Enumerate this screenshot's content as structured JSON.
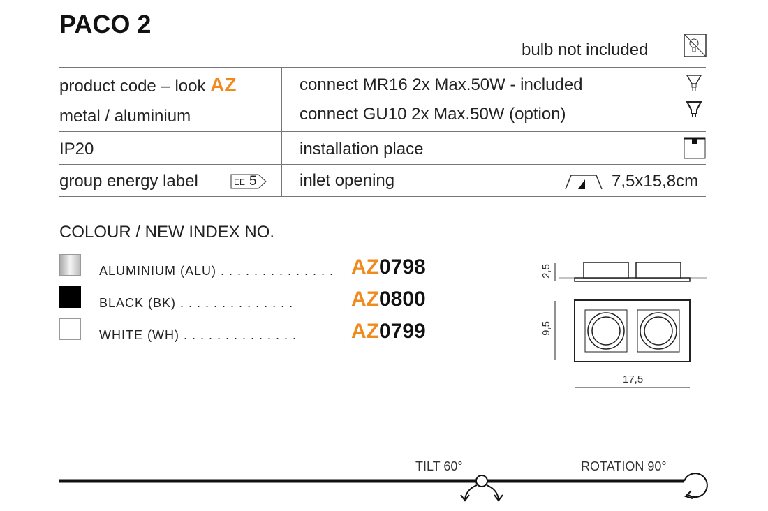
{
  "title": "PACO 2",
  "bulb_note": "bulb not included",
  "specs": {
    "left": [
      {
        "label": "product code – look",
        "accent": "AZ"
      },
      {
        "label": "metal / aluminium"
      },
      {
        "label": "IP20"
      },
      {
        "label": "group energy label",
        "badge_prefix": "EE",
        "badge_value": "5"
      }
    ],
    "right": [
      {
        "label": "connect MR16 2x Max.50W - included",
        "icon": "mr16-bulb-icon"
      },
      {
        "label": "connect GU10 2x Max.50W (option)",
        "icon": "gu10-bulb-icon"
      },
      {
        "label": "installation place",
        "icon": "ceiling-installation-icon"
      },
      {
        "label": "inlet opening",
        "value": "7,5x15,8cm",
        "icon": "inlet-opening-icon"
      }
    ]
  },
  "colours": {
    "heading": "COLOUR / NEW INDEX NO.",
    "items": [
      {
        "name": "ALUMINIUM (ALU)",
        "prefix": "AZ",
        "number": "0798",
        "swatch": "#d0d0d0"
      },
      {
        "name": "BLACK (BK)",
        "prefix": "AZ",
        "number": "0800",
        "swatch": "#000000"
      },
      {
        "name": "WHITE (WH)",
        "prefix": "AZ",
        "number": "0799",
        "swatch": "#ffffff"
      }
    ],
    "leader": ". . . . . . . . . . . . . ."
  },
  "dimensions": {
    "height": "2,5",
    "depth": "9,5",
    "width": "17,5"
  },
  "features": {
    "tilt": "TILT 60°",
    "rotation": "ROTATION 90°"
  },
  "accent_color": "#f08a1c"
}
